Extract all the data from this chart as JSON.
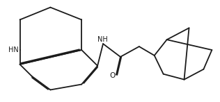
{
  "bg_color": "#ffffff",
  "line_color": "#1a1a1a",
  "line_width": 1.3,
  "figsize": [
    3.16,
    1.47
  ],
  "dpi": 100,
  "HN_label": "HN",
  "NH_label": "NH",
  "O_label": "O",
  "font_size": 7.0
}
